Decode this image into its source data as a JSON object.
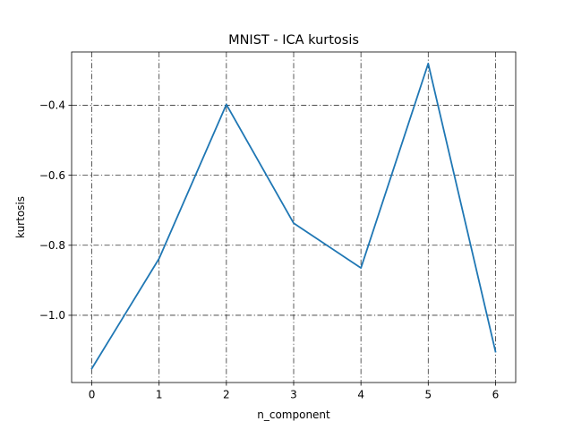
{
  "chart_data": {
    "type": "line",
    "title": "MNIST - ICA kurtosis",
    "xlabel": "n_component",
    "ylabel": "kurtosis",
    "x": [
      0,
      1,
      2,
      3,
      4,
      5,
      6
    ],
    "series": [
      {
        "values": [
          -1.152,
          -0.838,
          -0.398,
          -0.737,
          -0.865,
          -0.281,
          -1.104
        ],
        "color": "#1f77b4"
      }
    ],
    "xlim": [
      -0.3,
      6.3
    ],
    "ylim": [
      -1.192,
      -0.248
    ],
    "xticks": [
      0,
      1,
      2,
      3,
      4,
      5,
      6
    ],
    "xtick_labels": [
      "0",
      "1",
      "2",
      "3",
      "4",
      "5",
      "6"
    ],
    "yticks": [
      -1.0,
      -0.8,
      -0.6,
      -0.4
    ],
    "ytick_labels": [
      "−1.0",
      "−0.8",
      "−0.6",
      "−0.4"
    ],
    "grid": true,
    "legend": false
  }
}
